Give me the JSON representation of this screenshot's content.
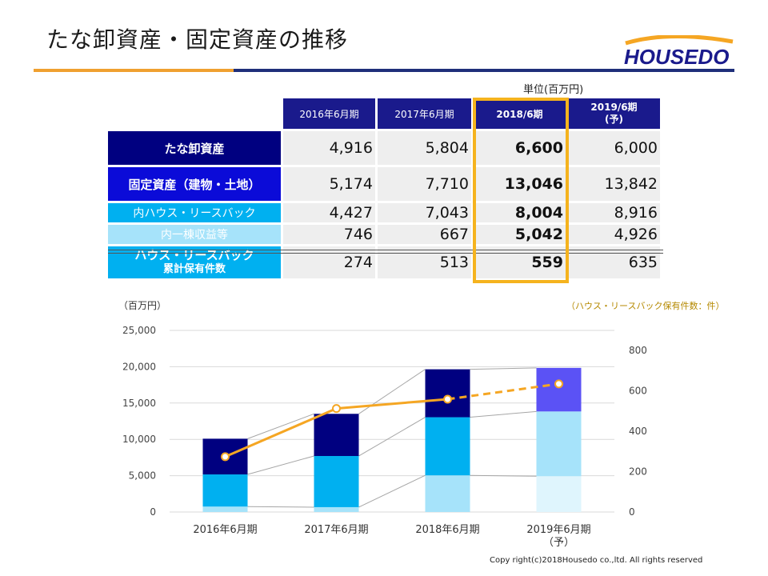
{
  "title": "たな卸資産・固定資産の推移",
  "logo_text": "HOUSEDO",
  "unit_label": "単位(百万円)",
  "table": {
    "headers": [
      "2016年6月期",
      "2017年6月期",
      "2018/6期",
      "2019/6期\n(予)"
    ],
    "rows": [
      {
        "label": "たな卸資産",
        "values": [
          "4,916",
          "5,804",
          "6,600",
          "6,000"
        ]
      },
      {
        "label": "固定資産（建物・土地）",
        "values": [
          "5,174",
          "7,710",
          "13,046",
          "13,842"
        ]
      },
      {
        "label": "内ハウス・リースバック",
        "values": [
          "4,427",
          "7,043",
          "8,004",
          "8,916"
        ]
      },
      {
        "label": "内一棟収益等",
        "values": [
          "746",
          "667",
          "5,042",
          "4,926"
        ]
      },
      {
        "label": "ハウス・リースバック",
        "label2": "累計保有件数",
        "values": [
          "274",
          "513",
          "559",
          "635"
        ]
      }
    ]
  },
  "colors": {
    "navy": "#000080",
    "deep_blue": "#0b0bd8",
    "sky": "#00b0f0",
    "light_sky": "#a6e3fa",
    "pale_sky": "#dff5fd",
    "forecast_purple": "#5b52f5",
    "line_orange": "#f5a623",
    "highlight": "#f5b31e"
  },
  "chart_data": {
    "type": "bar",
    "left_axis_label": "（百万円）",
    "right_axis_label": "（ハウス・リースバック保有件数：件）",
    "categories": [
      "2016年6月期",
      "2017年6月期",
      "2018年6月期",
      "2019年6月期\n（予）"
    ],
    "ylim": [
      0,
      25000
    ],
    "y2lim": [
      0,
      900
    ],
    "left_ticks": [
      "25,000",
      "20,000",
      "15,000",
      "10,000",
      "5,000",
      "0"
    ],
    "right_ticks": [
      "800",
      "600",
      "400",
      "200",
      "0"
    ],
    "stacked_series": [
      {
        "values": [
          746,
          667,
          5042,
          4926
        ]
      },
      {
        "values": [
          4427,
          7043,
          8004,
          8916
        ]
      },
      {
        "values": [
          4916,
          5804,
          6600,
          6000
        ]
      }
    ],
    "line_series": {
      "values": [
        274,
        513,
        559,
        635
      ],
      "forecast_from_index": 2
    }
  },
  "copyright": "Copy right(c)2018Housedo co.,ltd. All rights reserved"
}
